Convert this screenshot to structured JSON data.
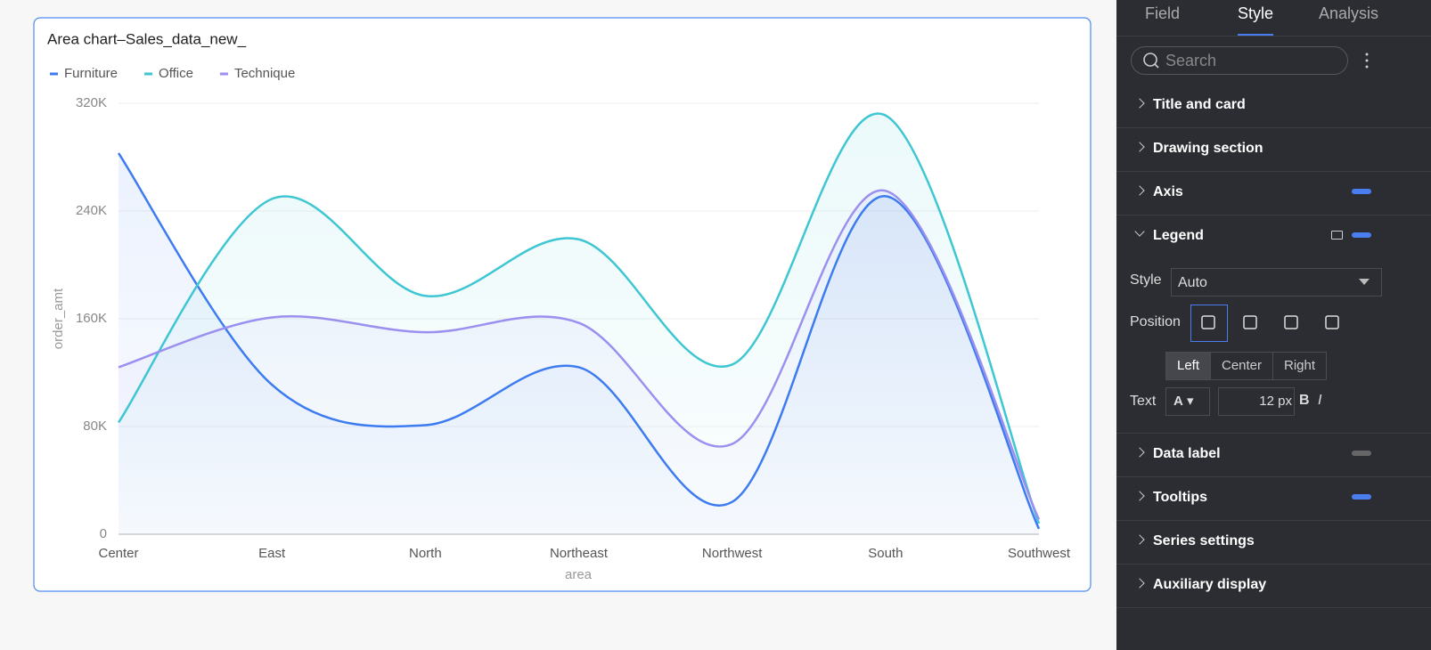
{
  "chart_data": {
    "type": "area",
    "title": "Area chart–Sales_data_new_",
    "x_label": "area",
    "y_label": "order_amt",
    "categories": [
      "Center",
      "East",
      "North",
      "Northeast",
      "Northwest",
      "South",
      "Southwest"
    ],
    "series": [
      {
        "name": "Furniture",
        "color": "#3d7bf0",
        "values": [
          283000,
          111000,
          81000,
          124000,
          24000,
          251000,
          4000
        ]
      },
      {
        "name": "Office",
        "color": "#3ec6d3",
        "values": [
          83000,
          249000,
          177000,
          219000,
          126000,
          311000,
          8000
        ]
      },
      {
        "name": "Technique",
        "color": "#9b8ff0",
        "values": [
          124000,
          161000,
          150000,
          157000,
          67000,
          255000,
          11000
        ]
      }
    ],
    "ylim": [
      0,
      320000
    ],
    "yticks": [
      0,
      {
        "value": 80000,
        "label": "80K"
      },
      {
        "value": 160000,
        "label": "160K"
      },
      {
        "value": 240000,
        "label": "240K"
      },
      {
        "value": 320000,
        "label": "320K"
      }
    ],
    "grid": true,
    "legend": "top-left"
  },
  "panel": {
    "tabs": [
      "Field",
      "Style",
      "Analysis"
    ],
    "active_tab": 1,
    "search_placeholder": "Search",
    "sections": [
      {
        "label": "Title and card"
      },
      {
        "label": "Drawing section"
      },
      {
        "label": "Axis",
        "toggle": true
      },
      {
        "label": "Legend",
        "toggle": true,
        "expanded": true
      },
      {
        "label": "Data label",
        "toggle": false
      },
      {
        "label": "Tooltips",
        "toggle": true
      },
      {
        "label": "Series settings"
      },
      {
        "label": "Auxiliary display"
      }
    ],
    "legend_settings": {
      "style_label": "Style",
      "style_value": "Auto",
      "position_label": "Position",
      "align_options": [
        "Left",
        "Center",
        "Right"
      ],
      "align_selected": 0,
      "text_label": "Text",
      "font_color": "A",
      "font_size": "12 px",
      "bold": "B",
      "italic": "I"
    }
  }
}
